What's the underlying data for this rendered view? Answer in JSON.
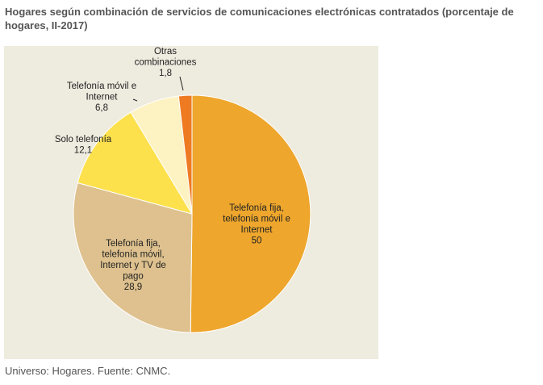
{
  "header": {
    "title": "Hogares según combinación de servicios de comunicaciones electrónicas contratados (porcentaje de hogares, II-2017)"
  },
  "footer": {
    "source": "Universo: Hogares. Fuente: CNMC."
  },
  "chart_data": {
    "type": "pie",
    "start_angle_deg": 0,
    "direction": "clockwise",
    "slices": [
      {
        "label_lines": [
          "Telefonía fija,",
          "telefonía móvil e",
          "Internet"
        ],
        "value": 50,
        "value_text": "50",
        "color": "#eea62c"
      },
      {
        "label_lines": [
          "Telefonía fija,",
          "telefonía móvil,",
          "Internet y TV de",
          "pago"
        ],
        "value": 28.9,
        "value_text": "28,9",
        "color": "#dec18e"
      },
      {
        "label_lines": [
          "Solo telefonía"
        ],
        "value": 12.1,
        "value_text": "12,1",
        "color": "#fde14c"
      },
      {
        "label_lines": [
          "Telefonía móvil e",
          "Internet"
        ],
        "value": 6.8,
        "value_text": "6,8",
        "color": "#fdf2c2"
      },
      {
        "label_lines": [
          "Otras",
          "combinaciones"
        ],
        "value": 1.8,
        "value_text": "1,8",
        "color": "#ee7a22"
      }
    ],
    "background_color": "#eeebdf",
    "legend": "none"
  }
}
